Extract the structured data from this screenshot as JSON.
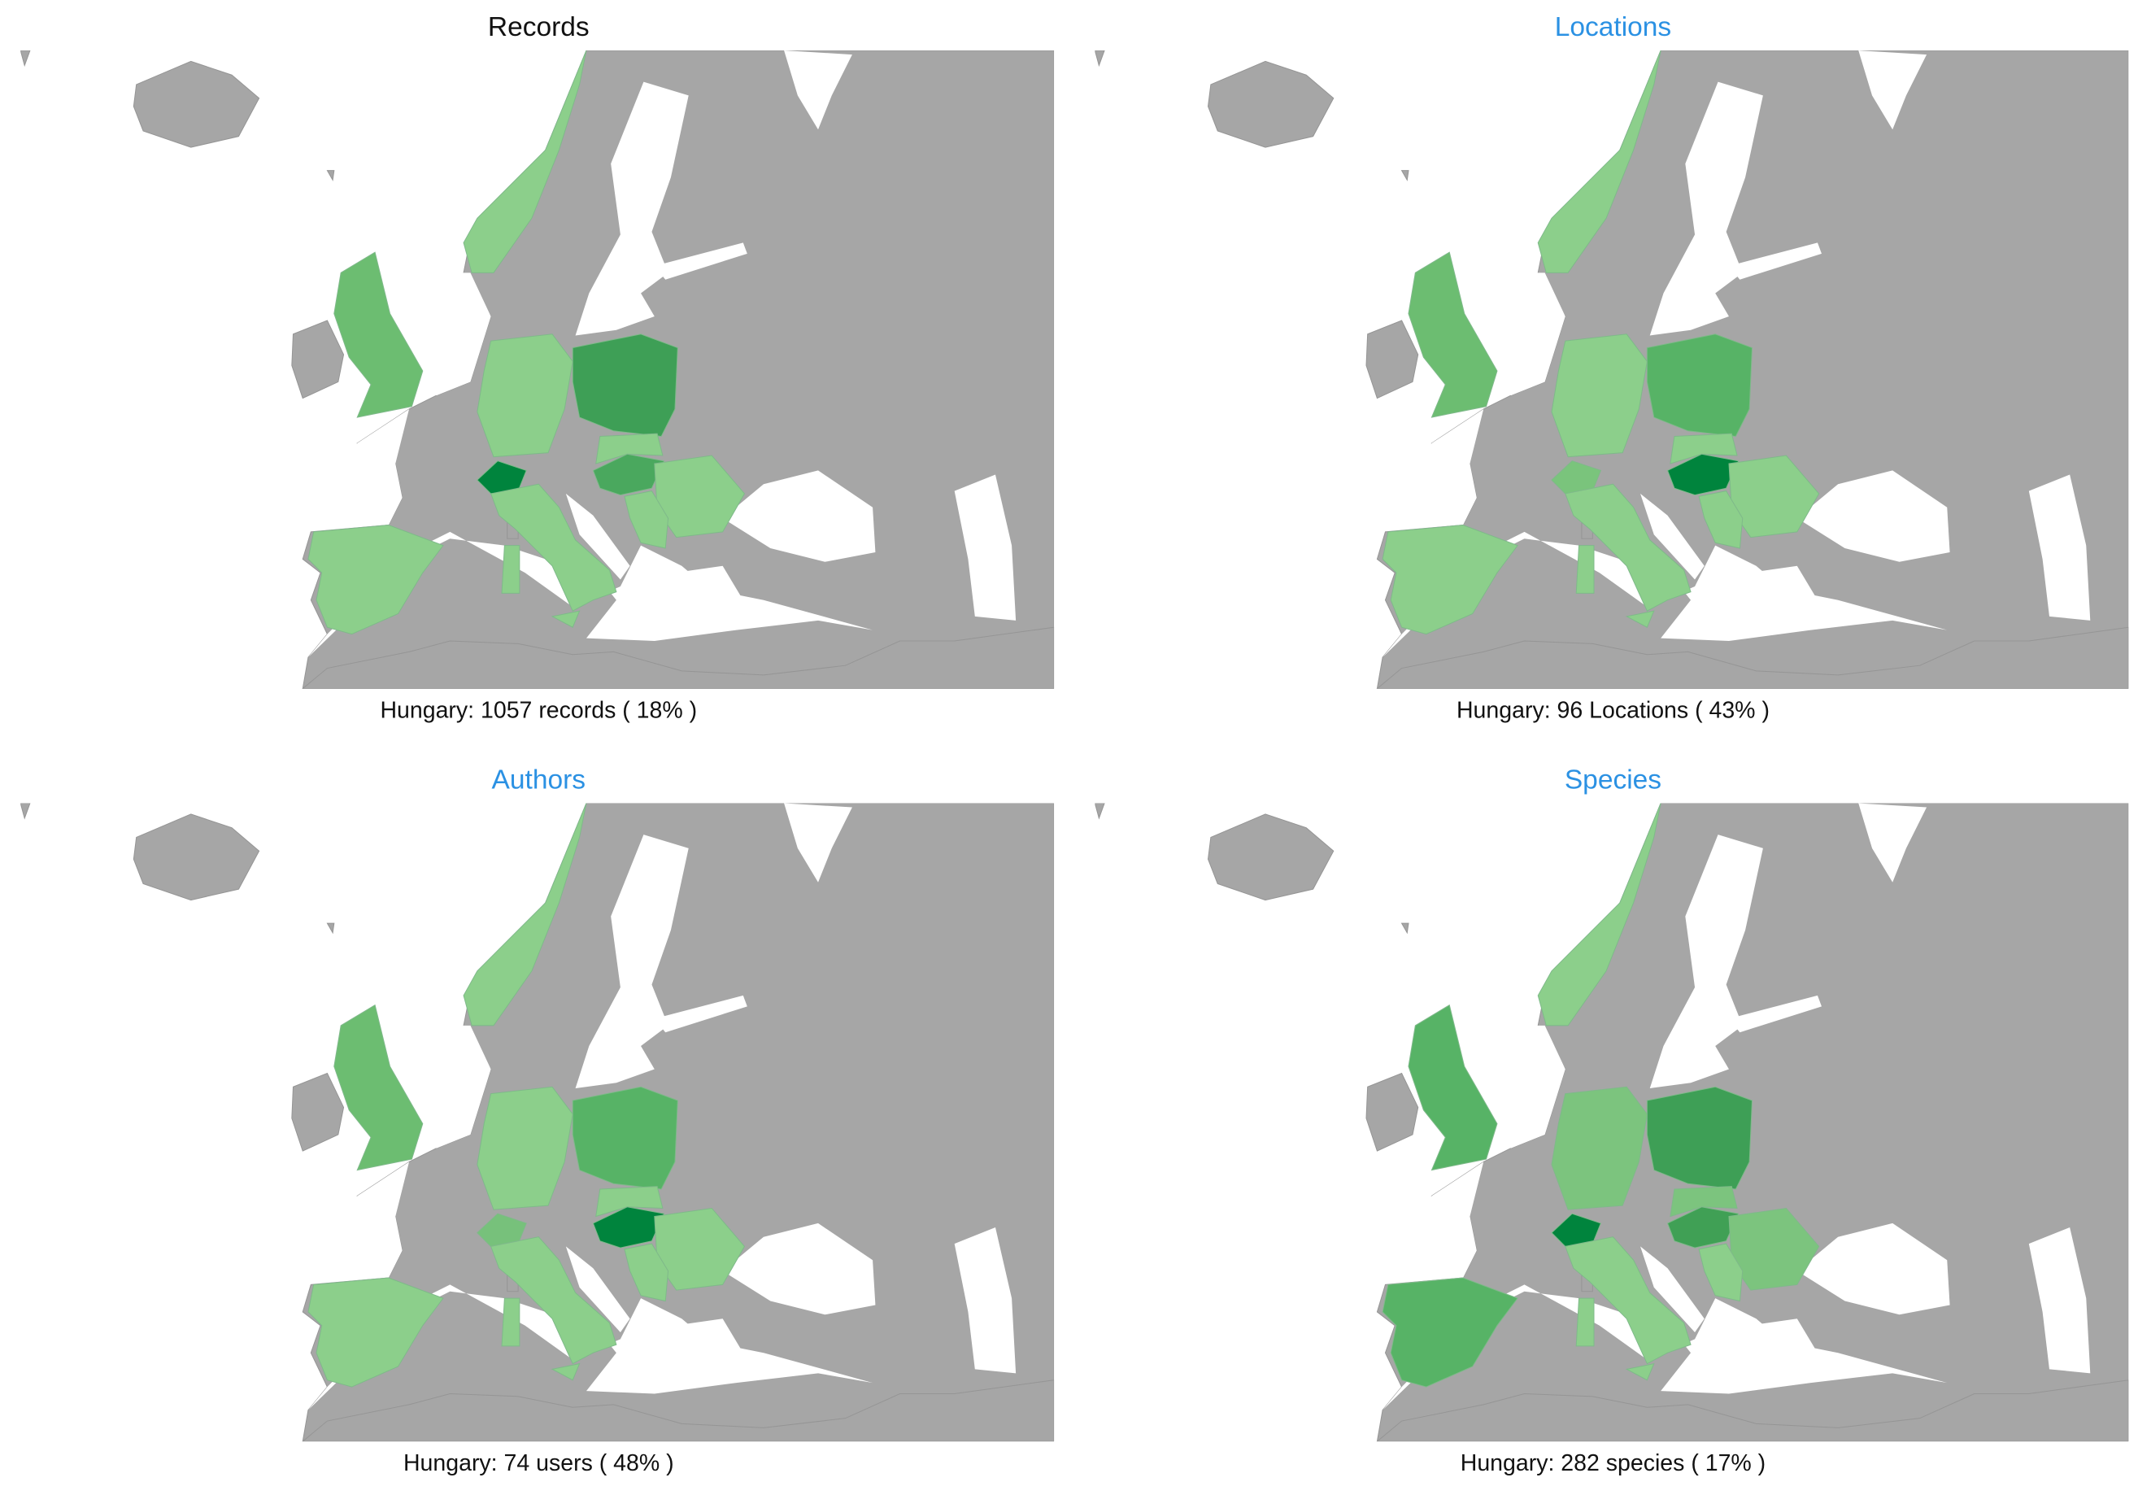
{
  "panels": [
    {
      "title": "Records",
      "caption": "Hungary: 1057 records ( 18% )"
    },
    {
      "title": "Locations",
      "caption": "Hungary: 96 Locations ( 43% )"
    },
    {
      "title": "Authors",
      "caption": "Hungary: 74 users ( 48% )"
    },
    {
      "title": "Species",
      "caption": "Hungary: 282 species ( 17% )"
    }
  ]
}
